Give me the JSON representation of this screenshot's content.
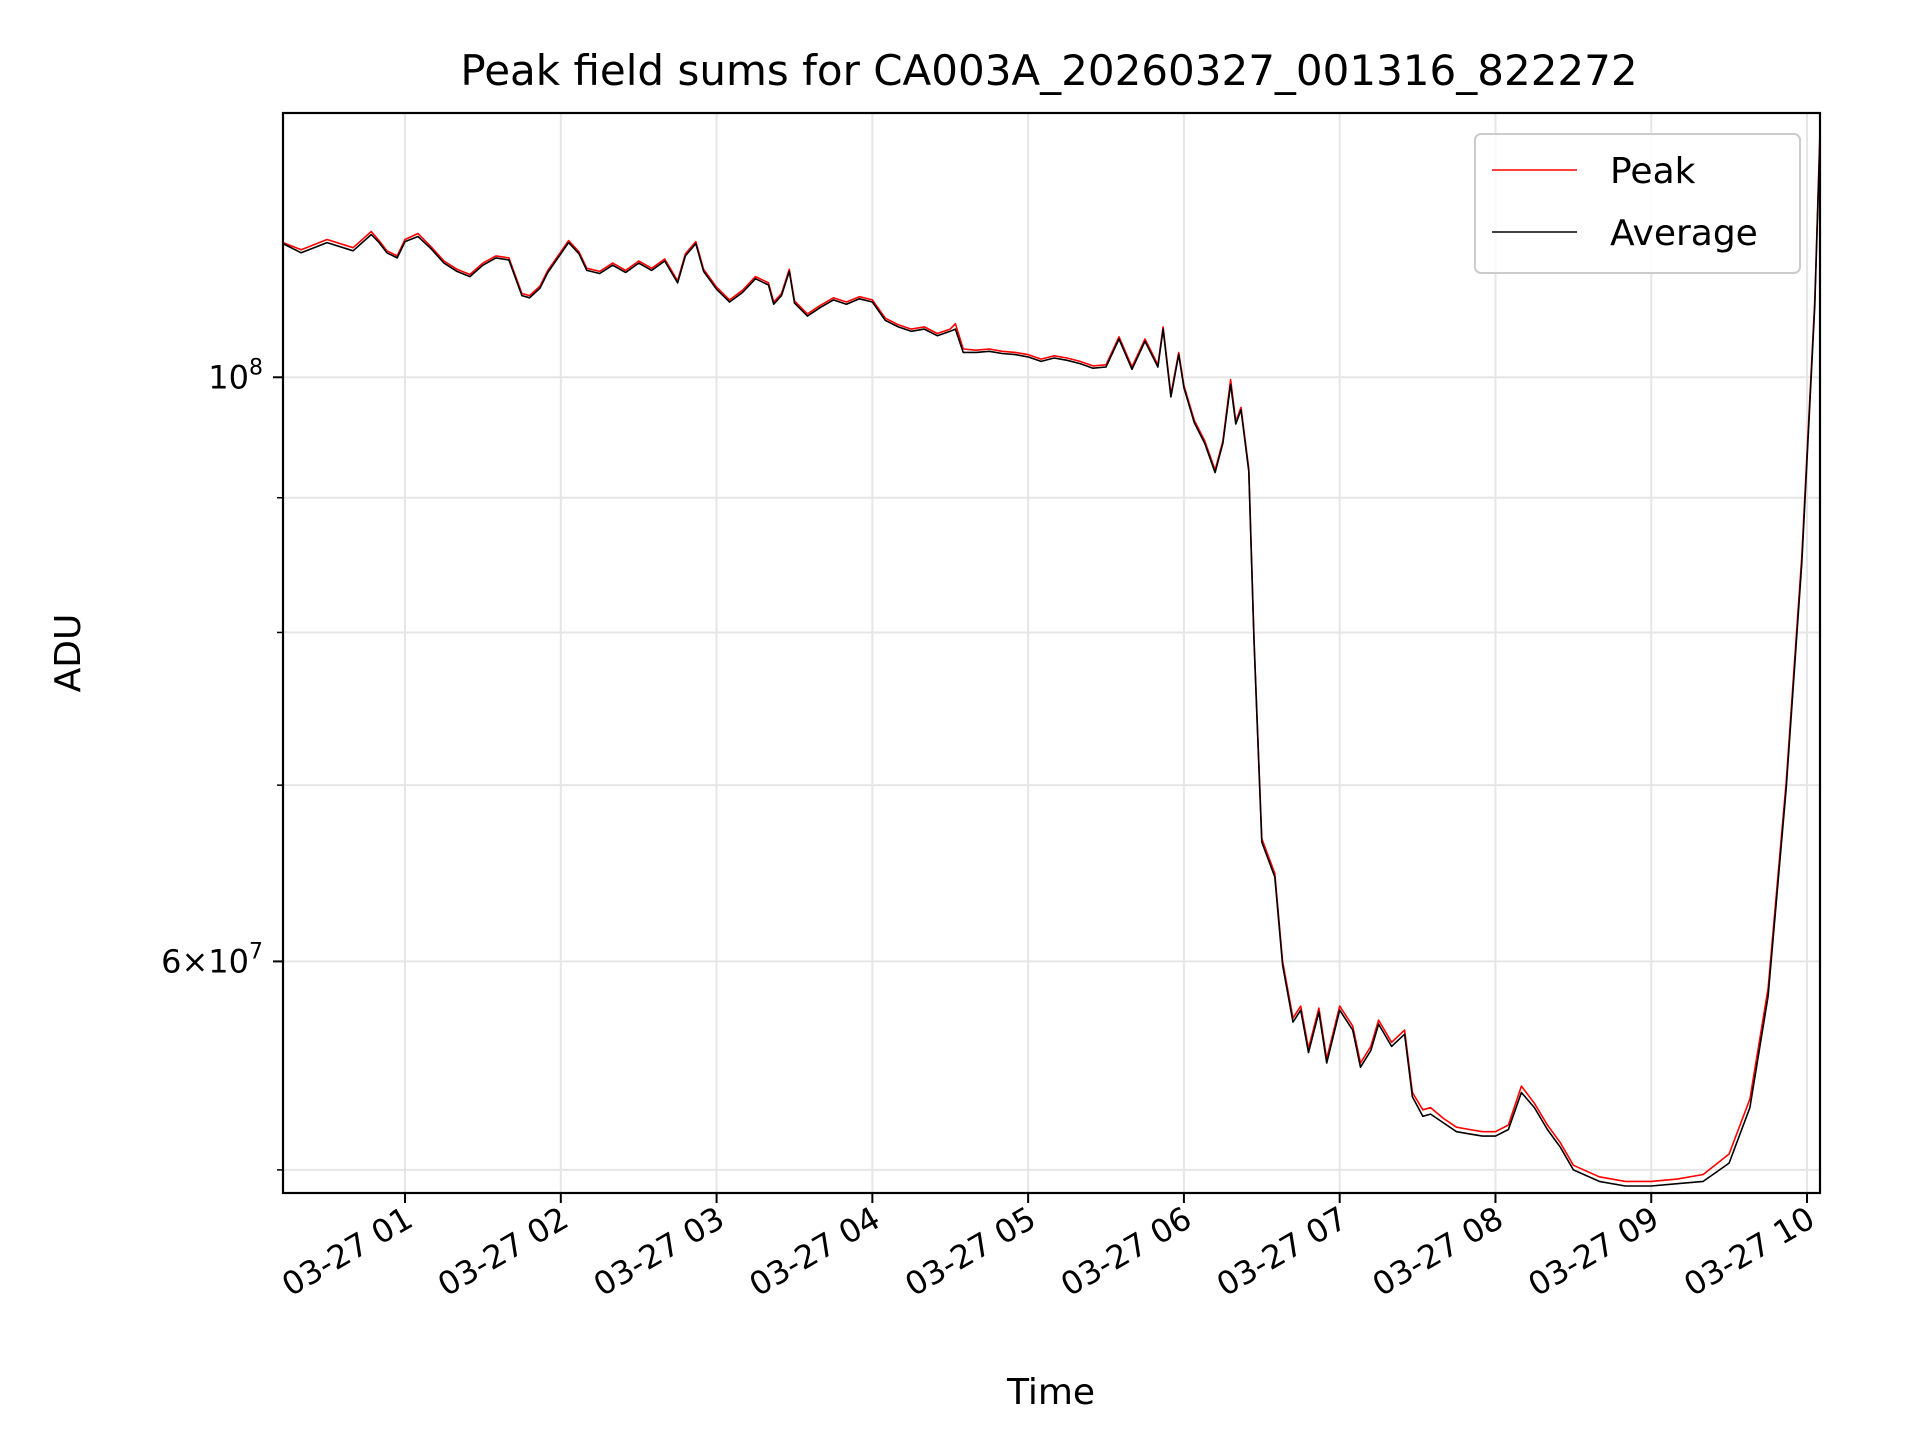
{
  "chart_data": {
    "type": "line",
    "title": "Peak field sums for CA003A_20260327_001316_822272",
    "xlabel": "Time",
    "ylabel": "ADU",
    "y_scale": "log",
    "xlim": [
      "2026-03-27 00:13",
      "2026-03-27 10:05"
    ],
    "ylim": [
      49000000,
      126000000
    ],
    "x_ticks": [
      {
        "value": "2026-03-27 01:00",
        "label": "03-27 01"
      },
      {
        "value": "2026-03-27 02:00",
        "label": "03-27 02"
      },
      {
        "value": "2026-03-27 03:00",
        "label": "03-27 03"
      },
      {
        "value": "2026-03-27 04:00",
        "label": "03-27 04"
      },
      {
        "value": "2026-03-27 05:00",
        "label": "03-27 05"
      },
      {
        "value": "2026-03-27 06:00",
        "label": "03-27 06"
      },
      {
        "value": "2026-03-27 07:00",
        "label": "03-27 07"
      },
      {
        "value": "2026-03-27 08:00",
        "label": "03-27 08"
      },
      {
        "value": "2026-03-27 09:00",
        "label": "03-27 09"
      },
      {
        "value": "2026-03-27 10:00",
        "label": "03-27 10"
      }
    ],
    "y_major_ticks": [
      {
        "value": 100000000,
        "base": "10",
        "exp": "8"
      },
      {
        "value": 60000000,
        "mantissa": "6",
        "base": "10",
        "exp": "7"
      }
    ],
    "y_minor_ticks": [
      50000000,
      70000000,
      80000000,
      90000000
    ],
    "grid": true,
    "legend_position": "top-right",
    "colors": {
      "peak": "#ff0000",
      "average": "#000000",
      "grid": "#e6e6e6"
    },
    "x_format": "MM-DD HH:mm",
    "series": [
      {
        "name": "Peak",
        "color": "#ff0000",
        "points": [
          [
            "00:13",
            112500000
          ],
          [
            "00:20",
            111800000
          ],
          [
            "00:30",
            112800000
          ],
          [
            "00:40",
            112000000
          ],
          [
            "00:47",
            113600000
          ],
          [
            "00:50",
            112700000
          ],
          [
            "00:53",
            111700000
          ],
          [
            "00:57",
            111200000
          ],
          [
            "01:00",
            112800000
          ],
          [
            "01:05",
            113400000
          ],
          [
            "01:10",
            112100000
          ],
          [
            "01:15",
            110700000
          ],
          [
            "01:20",
            109900000
          ],
          [
            "01:25",
            109400000
          ],
          [
            "01:30",
            110500000
          ],
          [
            "01:35",
            111200000
          ],
          [
            "01:40",
            111000000
          ],
          [
            "01:45",
            107600000
          ],
          [
            "01:48",
            107400000
          ],
          [
            "01:52",
            108300000
          ],
          [
            "01:55",
            109800000
          ],
          [
            "02:00",
            111600000
          ],
          [
            "02:03",
            112700000
          ],
          [
            "02:07",
            111600000
          ],
          [
            "02:10",
            110000000
          ],
          [
            "02:15",
            109700000
          ],
          [
            "02:20",
            110500000
          ],
          [
            "02:25",
            109800000
          ],
          [
            "02:30",
            110700000
          ],
          [
            "02:35",
            110000000
          ],
          [
            "02:40",
            110900000
          ],
          [
            "02:45",
            108800000
          ],
          [
            "02:48",
            111400000
          ],
          [
            "02:52",
            112600000
          ],
          [
            "02:55",
            109900000
          ],
          [
            "03:00",
            108200000
          ],
          [
            "03:05",
            107000000
          ],
          [
            "03:10",
            107900000
          ],
          [
            "03:15",
            109200000
          ],
          [
            "03:20",
            108600000
          ],
          [
            "03:22",
            106800000
          ],
          [
            "03:25",
            107600000
          ],
          [
            "03:28",
            109900000
          ],
          [
            "03:30",
            106900000
          ],
          [
            "03:35",
            105700000
          ],
          [
            "03:40",
            106500000
          ],
          [
            "03:45",
            107200000
          ],
          [
            "03:50",
            106800000
          ],
          [
            "03:55",
            107300000
          ],
          [
            "04:00",
            107000000
          ],
          [
            "04:05",
            105300000
          ],
          [
            "04:10",
            104700000
          ],
          [
            "04:15",
            104300000
          ],
          [
            "04:20",
            104500000
          ],
          [
            "04:25",
            103900000
          ],
          [
            "04:30",
            104300000
          ],
          [
            "04:32",
            104800000
          ],
          [
            "04:35",
            102500000
          ],
          [
            "04:40",
            102400000
          ],
          [
            "04:45",
            102500000
          ],
          [
            "04:50",
            102300000
          ],
          [
            "04:55",
            102200000
          ],
          [
            "05:00",
            102000000
          ],
          [
            "05:05",
            101600000
          ],
          [
            "05:10",
            101900000
          ],
          [
            "05:15",
            101700000
          ],
          [
            "05:20",
            101400000
          ],
          [
            "05:25",
            101000000
          ],
          [
            "05:30",
            101100000
          ],
          [
            "05:35",
            103600000
          ],
          [
            "05:40",
            100900000
          ],
          [
            "05:45",
            103400000
          ],
          [
            "05:50",
            101100000
          ],
          [
            "05:52",
            104500000
          ],
          [
            "05:55",
            98500000
          ],
          [
            "05:58",
            102200000
          ],
          [
            "06:00",
            99300000
          ],
          [
            "06:04",
            96300000
          ],
          [
            "06:08",
            94600000
          ],
          [
            "06:12",
            92200000
          ],
          [
            "06:15",
            94600000
          ],
          [
            "06:18",
            99800000
          ],
          [
            "06:20",
            96200000
          ],
          [
            "06:22",
            97400000
          ],
          [
            "06:25",
            92300000
          ],
          [
            "06:27",
            79600000
          ],
          [
            "06:30",
            66800000
          ],
          [
            "06:35",
            64800000
          ],
          [
            "06:38",
            60000000
          ],
          [
            "06:42",
            57100000
          ],
          [
            "06:45",
            57700000
          ],
          [
            "06:48",
            55600000
          ],
          [
            "06:52",
            57600000
          ],
          [
            "06:55",
            55100000
          ],
          [
            "07:00",
            57700000
          ],
          [
            "07:05",
            56700000
          ],
          [
            "07:08",
            54900000
          ],
          [
            "07:12",
            55700000
          ],
          [
            "07:15",
            57000000
          ],
          [
            "07:20",
            55900000
          ],
          [
            "07:25",
            56500000
          ],
          [
            "07:28",
            53500000
          ],
          [
            "07:32",
            52700000
          ],
          [
            "07:35",
            52800000
          ],
          [
            "07:40",
            52300000
          ],
          [
            "07:45",
            51900000
          ],
          [
            "07:50",
            51800000
          ],
          [
            "07:55",
            51700000
          ],
          [
            "08:00",
            51700000
          ],
          [
            "08:05",
            52000000
          ],
          [
            "08:10",
            53800000
          ],
          [
            "08:15",
            53000000
          ],
          [
            "08:20",
            52000000
          ],
          [
            "08:25",
            51200000
          ],
          [
            "08:30",
            50200000
          ],
          [
            "08:40",
            49700000
          ],
          [
            "08:50",
            49500000
          ],
          [
            "09:00",
            49500000
          ],
          [
            "09:10",
            49600000
          ],
          [
            "09:20",
            49800000
          ],
          [
            "09:30",
            50700000
          ],
          [
            "09:38",
            53200000
          ],
          [
            "09:45",
            58600000
          ],
          [
            "09:52",
            70200000
          ],
          [
            "09:58",
            85500000
          ],
          [
            "10:03",
            107000000
          ],
          [
            "10:05",
            124000000
          ]
        ]
      },
      {
        "name": "Average",
        "color": "#000000",
        "points": [
          [
            "00:13",
            112400000
          ],
          [
            "00:20",
            111500000
          ],
          [
            "00:30",
            112500000
          ],
          [
            "00:40",
            111700000
          ],
          [
            "00:47",
            113300000
          ],
          [
            "00:50",
            112500000
          ],
          [
            "00:53",
            111500000
          ],
          [
            "00:57",
            111000000
          ],
          [
            "01:00",
            112600000
          ],
          [
            "01:05",
            113100000
          ],
          [
            "01:10",
            111900000
          ],
          [
            "01:15",
            110500000
          ],
          [
            "01:20",
            109700000
          ],
          [
            "01:25",
            109200000
          ],
          [
            "01:30",
            110300000
          ],
          [
            "01:35",
            111000000
          ],
          [
            "01:40",
            110800000
          ],
          [
            "01:45",
            107400000
          ],
          [
            "01:48",
            107200000
          ],
          [
            "01:52",
            108100000
          ],
          [
            "01:55",
            109600000
          ],
          [
            "02:00",
            111400000
          ],
          [
            "02:03",
            112500000
          ],
          [
            "02:07",
            111400000
          ],
          [
            "02:10",
            109800000
          ],
          [
            "02:15",
            109500000
          ],
          [
            "02:20",
            110300000
          ],
          [
            "02:25",
            109600000
          ],
          [
            "02:30",
            110500000
          ],
          [
            "02:35",
            109800000
          ],
          [
            "02:40",
            110700000
          ],
          [
            "02:45",
            108600000
          ],
          [
            "02:48",
            111200000
          ],
          [
            "02:52",
            112400000
          ],
          [
            "02:55",
            109700000
          ],
          [
            "03:00",
            108000000
          ],
          [
            "03:05",
            106800000
          ],
          [
            "03:10",
            107700000
          ],
          [
            "03:15",
            109000000
          ],
          [
            "03:20",
            108400000
          ],
          [
            "03:22",
            106600000
          ],
          [
            "03:25",
            107400000
          ],
          [
            "03:28",
            109700000
          ],
          [
            "03:30",
            106700000
          ],
          [
            "03:35",
            105500000
          ],
          [
            "03:40",
            106300000
          ],
          [
            "03:45",
            107000000
          ],
          [
            "03:50",
            106600000
          ],
          [
            "03:55",
            107100000
          ],
          [
            "04:00",
            106800000
          ],
          [
            "04:05",
            105100000
          ],
          [
            "04:10",
            104500000
          ],
          [
            "04:15",
            104100000
          ],
          [
            "04:20",
            104300000
          ],
          [
            "04:25",
            103700000
          ],
          [
            "04:30",
            104100000
          ],
          [
            "04:32",
            104300000
          ],
          [
            "04:35",
            102200000
          ],
          [
            "04:40",
            102200000
          ],
          [
            "04:45",
            102300000
          ],
          [
            "04:50",
            102100000
          ],
          [
            "04:55",
            102000000
          ],
          [
            "05:00",
            101800000
          ],
          [
            "05:05",
            101400000
          ],
          [
            "05:10",
            101700000
          ],
          [
            "05:15",
            101500000
          ],
          [
            "05:20",
            101200000
          ],
          [
            "05:25",
            100800000
          ],
          [
            "05:30",
            100900000
          ],
          [
            "05:35",
            103400000
          ],
          [
            "05:40",
            100700000
          ],
          [
            "05:45",
            103200000
          ],
          [
            "05:50",
            100900000
          ],
          [
            "05:52",
            104300000
          ],
          [
            "05:55",
            98300000
          ],
          [
            "05:58",
            102000000
          ],
          [
            "06:00",
            99100000
          ],
          [
            "06:04",
            96100000
          ],
          [
            "06:08",
            94400000
          ],
          [
            "06:12",
            92000000
          ],
          [
            "06:15",
            94400000
          ],
          [
            "06:18",
            99400000
          ],
          [
            "06:20",
            96000000
          ],
          [
            "06:22",
            97200000
          ],
          [
            "06:25",
            92100000
          ],
          [
            "06:27",
            79400000
          ],
          [
            "06:30",
            66600000
          ],
          [
            "06:35",
            64600000
          ],
          [
            "06:38",
            59800000
          ],
          [
            "06:42",
            56900000
          ],
          [
            "06:45",
            57500000
          ],
          [
            "06:48",
            55400000
          ],
          [
            "06:52",
            57400000
          ],
          [
            "06:55",
            54900000
          ],
          [
            "07:00",
            57500000
          ],
          [
            "07:05",
            56500000
          ],
          [
            "07:08",
            54700000
          ],
          [
            "07:12",
            55500000
          ],
          [
            "07:15",
            56800000
          ],
          [
            "07:20",
            55700000
          ],
          [
            "07:25",
            56300000
          ],
          [
            "07:28",
            53300000
          ],
          [
            "07:32",
            52400000
          ],
          [
            "07:35",
            52500000
          ],
          [
            "07:40",
            52100000
          ],
          [
            "07:45",
            51700000
          ],
          [
            "07:50",
            51600000
          ],
          [
            "07:55",
            51500000
          ],
          [
            "08:00",
            51500000
          ],
          [
            "08:05",
            51800000
          ],
          [
            "08:10",
            53500000
          ],
          [
            "08:15",
            52800000
          ],
          [
            "08:20",
            51800000
          ],
          [
            "08:25",
            51000000
          ],
          [
            "08:30",
            50000000
          ],
          [
            "08:40",
            49500000
          ],
          [
            "08:50",
            49300000
          ],
          [
            "09:00",
            49300000
          ],
          [
            "09:10",
            49400000
          ],
          [
            "09:20",
            49500000
          ],
          [
            "09:30",
            50300000
          ],
          [
            "09:38",
            52800000
          ],
          [
            "09:45",
            58200000
          ],
          [
            "09:52",
            69800000
          ],
          [
            "09:58",
            85000000
          ],
          [
            "10:03",
            106500000
          ],
          [
            "10:05",
            123500000
          ]
        ]
      }
    ]
  }
}
